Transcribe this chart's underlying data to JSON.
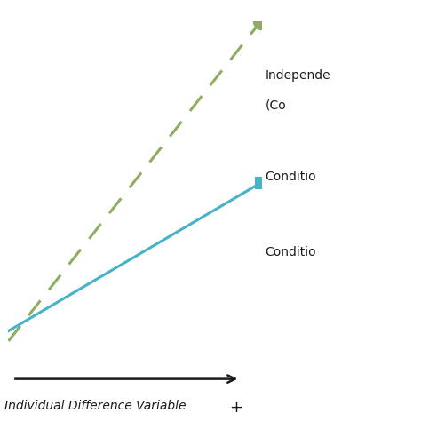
{
  "xlabel": "Individual Difference Variable",
  "arrow_label": "+",
  "legend_line1a": "Independe",
  "legend_line1b": "(Co",
  "legend_line2": "Conditio",
  "legend_line3": "Conditio",
  "green_line_x": [
    0.0,
    1.0
  ],
  "green_line_y": [
    0.05,
    1.0
  ],
  "blue_line_x": [
    0.0,
    1.0
  ],
  "blue_line_y": [
    0.08,
    0.52
  ],
  "green_color": "#8fad60",
  "blue_color": "#45b3c8",
  "background_color": "#ffffff",
  "text_color": "#1a1a1a",
  "figsize": [
    4.74,
    4.74
  ],
  "dpi": 100
}
